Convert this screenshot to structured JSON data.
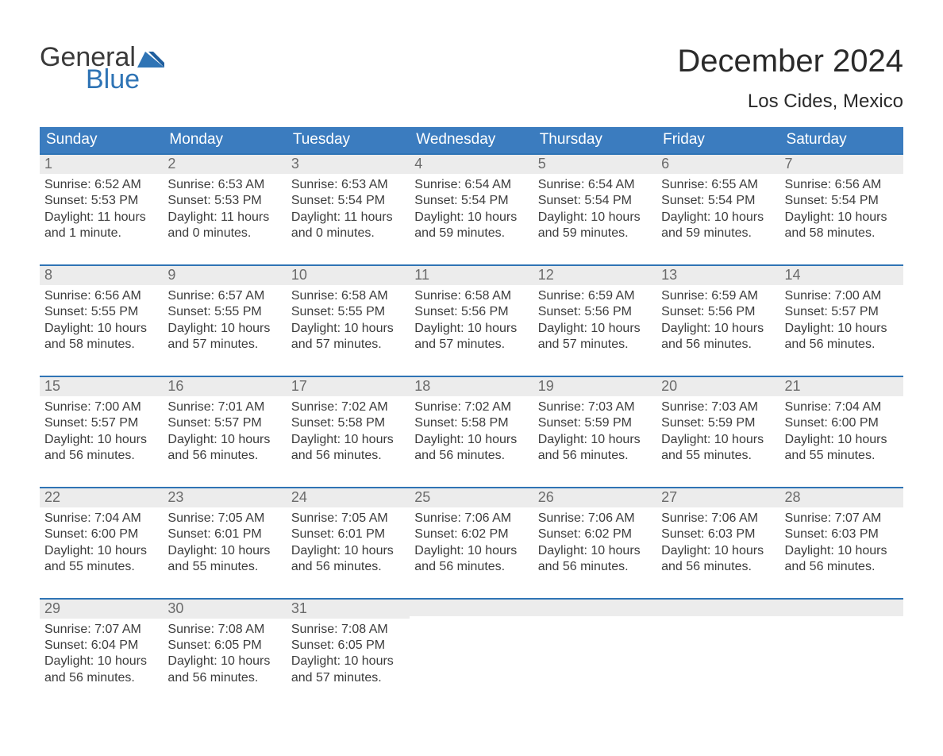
{
  "brand": {
    "word1": "General",
    "word2": "Blue",
    "color_gray": "#3a3a3a",
    "color_blue": "#2f74b5"
  },
  "title": "December 2024",
  "location": "Los Cides, Mexico",
  "colors": {
    "header_bg": "#3b7cbf",
    "header_text": "#ffffff",
    "row_border_top": "#2f74b5",
    "daynum_bg": "#ececec",
    "daynum_text": "#6b6b6b",
    "body_text": "#3c3c3c",
    "background": "#ffffff"
  },
  "fonts": {
    "family": "Arial, Helvetica, sans-serif",
    "title_size_pt": 30,
    "subtitle_size_pt": 18,
    "header_size_pt": 14,
    "daynum_size_pt": 14,
    "detail_size_pt": 12
  },
  "weekday_labels": [
    "Sunday",
    "Monday",
    "Tuesday",
    "Wednesday",
    "Thursday",
    "Friday",
    "Saturday"
  ],
  "field_labels": {
    "sunrise": "Sunrise",
    "sunset": "Sunset",
    "daylight": "Daylight"
  },
  "days": [
    {
      "n": 1,
      "sunrise": "6:52 AM",
      "sunset": "5:53 PM",
      "daylight": "11 hours and 1 minute."
    },
    {
      "n": 2,
      "sunrise": "6:53 AM",
      "sunset": "5:53 PM",
      "daylight": "11 hours and 0 minutes."
    },
    {
      "n": 3,
      "sunrise": "6:53 AM",
      "sunset": "5:54 PM",
      "daylight": "11 hours and 0 minutes."
    },
    {
      "n": 4,
      "sunrise": "6:54 AM",
      "sunset": "5:54 PM",
      "daylight": "10 hours and 59 minutes."
    },
    {
      "n": 5,
      "sunrise": "6:54 AM",
      "sunset": "5:54 PM",
      "daylight": "10 hours and 59 minutes."
    },
    {
      "n": 6,
      "sunrise": "6:55 AM",
      "sunset": "5:54 PM",
      "daylight": "10 hours and 59 minutes."
    },
    {
      "n": 7,
      "sunrise": "6:56 AM",
      "sunset": "5:54 PM",
      "daylight": "10 hours and 58 minutes."
    },
    {
      "n": 8,
      "sunrise": "6:56 AM",
      "sunset": "5:55 PM",
      "daylight": "10 hours and 58 minutes."
    },
    {
      "n": 9,
      "sunrise": "6:57 AM",
      "sunset": "5:55 PM",
      "daylight": "10 hours and 57 minutes."
    },
    {
      "n": 10,
      "sunrise": "6:58 AM",
      "sunset": "5:55 PM",
      "daylight": "10 hours and 57 minutes."
    },
    {
      "n": 11,
      "sunrise": "6:58 AM",
      "sunset": "5:56 PM",
      "daylight": "10 hours and 57 minutes."
    },
    {
      "n": 12,
      "sunrise": "6:59 AM",
      "sunset": "5:56 PM",
      "daylight": "10 hours and 57 minutes."
    },
    {
      "n": 13,
      "sunrise": "6:59 AM",
      "sunset": "5:56 PM",
      "daylight": "10 hours and 56 minutes."
    },
    {
      "n": 14,
      "sunrise": "7:00 AM",
      "sunset": "5:57 PM",
      "daylight": "10 hours and 56 minutes."
    },
    {
      "n": 15,
      "sunrise": "7:00 AM",
      "sunset": "5:57 PM",
      "daylight": "10 hours and 56 minutes."
    },
    {
      "n": 16,
      "sunrise": "7:01 AM",
      "sunset": "5:57 PM",
      "daylight": "10 hours and 56 minutes."
    },
    {
      "n": 17,
      "sunrise": "7:02 AM",
      "sunset": "5:58 PM",
      "daylight": "10 hours and 56 minutes."
    },
    {
      "n": 18,
      "sunrise": "7:02 AM",
      "sunset": "5:58 PM",
      "daylight": "10 hours and 56 minutes."
    },
    {
      "n": 19,
      "sunrise": "7:03 AM",
      "sunset": "5:59 PM",
      "daylight": "10 hours and 56 minutes."
    },
    {
      "n": 20,
      "sunrise": "7:03 AM",
      "sunset": "5:59 PM",
      "daylight": "10 hours and 55 minutes."
    },
    {
      "n": 21,
      "sunrise": "7:04 AM",
      "sunset": "6:00 PM",
      "daylight": "10 hours and 55 minutes."
    },
    {
      "n": 22,
      "sunrise": "7:04 AM",
      "sunset": "6:00 PM",
      "daylight": "10 hours and 55 minutes."
    },
    {
      "n": 23,
      "sunrise": "7:05 AM",
      "sunset": "6:01 PM",
      "daylight": "10 hours and 55 minutes."
    },
    {
      "n": 24,
      "sunrise": "7:05 AM",
      "sunset": "6:01 PM",
      "daylight": "10 hours and 56 minutes."
    },
    {
      "n": 25,
      "sunrise": "7:06 AM",
      "sunset": "6:02 PM",
      "daylight": "10 hours and 56 minutes."
    },
    {
      "n": 26,
      "sunrise": "7:06 AM",
      "sunset": "6:02 PM",
      "daylight": "10 hours and 56 minutes."
    },
    {
      "n": 27,
      "sunrise": "7:06 AM",
      "sunset": "6:03 PM",
      "daylight": "10 hours and 56 minutes."
    },
    {
      "n": 28,
      "sunrise": "7:07 AM",
      "sunset": "6:03 PM",
      "daylight": "10 hours and 56 minutes."
    },
    {
      "n": 29,
      "sunrise": "7:07 AM",
      "sunset": "6:04 PM",
      "daylight": "10 hours and 56 minutes."
    },
    {
      "n": 30,
      "sunrise": "7:08 AM",
      "sunset": "6:05 PM",
      "daylight": "10 hours and 56 minutes."
    },
    {
      "n": 31,
      "sunrise": "7:08 AM",
      "sunset": "6:05 PM",
      "daylight": "10 hours and 57 minutes."
    }
  ],
  "calendar_layout": {
    "rows": 5,
    "cols": 7,
    "first_weekday_index": 0,
    "trailing_empty_cells": 4
  }
}
